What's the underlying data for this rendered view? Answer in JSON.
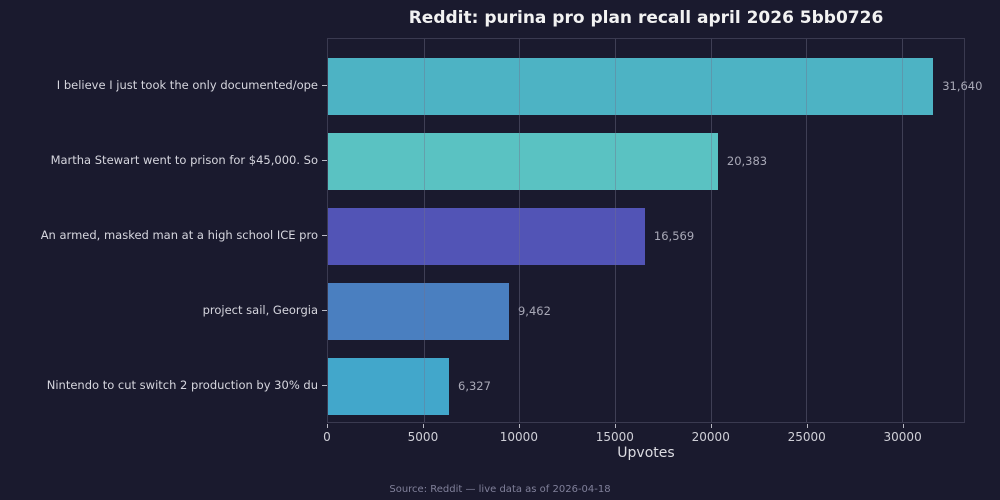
{
  "title": "Reddit: purina pro plan recall april 2026 5bb0726",
  "footer": "Source: Reddit — live data as of 2026-04-18",
  "colors": {
    "background": "#1a1a2e",
    "plot_border": "#3a3a50",
    "gridline": "rgba(115,115,140,0.42)",
    "title_text": "#f2f2f2",
    "category_text": "#d6d6de",
    "value_text": "#a9a9b7",
    "tick_text": "#cfcfd7",
    "footer_text": "#80809a"
  },
  "chart_data": {
    "type": "bar",
    "orientation": "horizontal",
    "title": "Reddit: purina pro plan recall april 2026 5bb0726",
    "categories": [
      "I believe I just took the only documented/ope",
      "Martha Stewart went to prison for $45,000. So",
      "An armed, masked man at a high school ICE pro",
      "project sail, Georgia",
      "Nintendo to cut switch 2 production by 30% du"
    ],
    "values": [
      31640,
      20383,
      16569,
      9462,
      6327
    ],
    "value_labels": [
      "31,640",
      "20,383",
      "16,569",
      "9,462",
      "6,327"
    ],
    "bar_colors": [
      "#4db3c4",
      "#5ac2c2",
      "#5254b6",
      "#4a7fc0",
      "#42a7cb"
    ],
    "xlabel": "Upvotes",
    "ylabel": "",
    "xlim": [
      0,
      33250
    ],
    "xticks": [
      0,
      5000,
      10000,
      15000,
      20000,
      25000,
      30000
    ],
    "grid": "vertical",
    "legend": "none"
  }
}
